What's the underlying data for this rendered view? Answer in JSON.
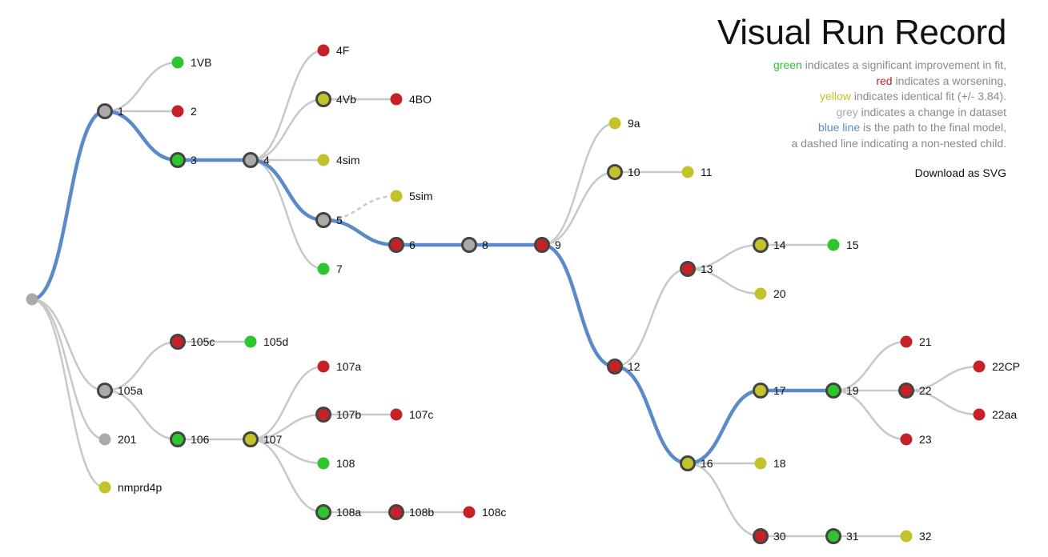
{
  "title": "Visual Run Record",
  "legend": {
    "green": {
      "word": "green",
      "rest": " indicates a significant improvement in fit,",
      "color": "#2ec52e"
    },
    "red": {
      "word": "red",
      "rest": " indicates a worsening,",
      "color": "#c62127"
    },
    "yellow": {
      "word": "yellow",
      "rest": " indicates identical fit (+/- 3.84).",
      "color": "#c2c22a"
    },
    "grey": {
      "word": "grey",
      "rest": " indicates a change in dataset",
      "color": "#aaaaaa"
    },
    "blue": {
      "word": "blue line",
      "rest": " is the path to the final model,",
      "color": "#5b8ac9"
    },
    "dashed": {
      "text": "a dashed line indicating a non-nested child."
    }
  },
  "download_label": "Download as SVG",
  "colors": {
    "green": "#2ec52e",
    "red": "#c62127",
    "yellow": "#c2c22a",
    "grey": "#aaaaaa",
    "path": "#5b8ac9",
    "edge": "#c8c8c8"
  },
  "nodes": [
    {
      "id": "root",
      "label": "",
      "color": "grey",
      "parent": null
    },
    {
      "id": "1",
      "label": "1",
      "color": "grey",
      "parent": "root"
    },
    {
      "id": "1VB",
      "label": "1VB",
      "color": "green",
      "parent": "1"
    },
    {
      "id": "2",
      "label": "2",
      "color": "red",
      "parent": "1"
    },
    {
      "id": "3",
      "label": "3",
      "color": "green",
      "parent": "1"
    },
    {
      "id": "4",
      "label": "4",
      "color": "grey",
      "parent": "3"
    },
    {
      "id": "4F",
      "label": "4F",
      "color": "red",
      "parent": "4"
    },
    {
      "id": "4Vb",
      "label": "4Vb",
      "color": "yellow",
      "parent": "4"
    },
    {
      "id": "4BO",
      "label": "4BO",
      "color": "red",
      "parent": "4Vb"
    },
    {
      "id": "4sim",
      "label": "4sim",
      "color": "yellow",
      "parent": "4"
    },
    {
      "id": "5",
      "label": "5",
      "color": "grey",
      "parent": "4"
    },
    {
      "id": "5sim",
      "label": "5sim",
      "color": "yellow",
      "parent": "5",
      "dashed": true
    },
    {
      "id": "7",
      "label": "7",
      "color": "green",
      "parent": "4"
    },
    {
      "id": "6",
      "label": "6",
      "color": "red",
      "parent": "5"
    },
    {
      "id": "8",
      "label": "8",
      "color": "grey",
      "parent": "6"
    },
    {
      "id": "9",
      "label": "9",
      "color": "red",
      "parent": "8"
    },
    {
      "id": "9a",
      "label": "9a",
      "color": "yellow",
      "parent": "9"
    },
    {
      "id": "10",
      "label": "10",
      "color": "yellow",
      "parent": "9"
    },
    {
      "id": "11",
      "label": "11",
      "color": "yellow",
      "parent": "10"
    },
    {
      "id": "12",
      "label": "12",
      "color": "red",
      "parent": "9"
    },
    {
      "id": "13",
      "label": "13",
      "color": "red",
      "parent": "12"
    },
    {
      "id": "14",
      "label": "14",
      "color": "yellow",
      "parent": "13"
    },
    {
      "id": "15",
      "label": "15",
      "color": "green",
      "parent": "14"
    },
    {
      "id": "20",
      "label": "20",
      "color": "yellow",
      "parent": "13"
    },
    {
      "id": "16",
      "label": "16",
      "color": "yellow",
      "parent": "12"
    },
    {
      "id": "17",
      "label": "17",
      "color": "yellow",
      "parent": "16"
    },
    {
      "id": "19",
      "label": "19",
      "color": "green",
      "parent": "17"
    },
    {
      "id": "21",
      "label": "21",
      "color": "red",
      "parent": "19"
    },
    {
      "id": "22",
      "label": "22",
      "color": "red",
      "parent": "19"
    },
    {
      "id": "22CP",
      "label": "22CP",
      "color": "red",
      "parent": "22"
    },
    {
      "id": "22aa",
      "label": "22aa",
      "color": "red",
      "parent": "22"
    },
    {
      "id": "23",
      "label": "23",
      "color": "red",
      "parent": "19"
    },
    {
      "id": "18",
      "label": "18",
      "color": "yellow",
      "parent": "16"
    },
    {
      "id": "30",
      "label": "30",
      "color": "red",
      "parent": "16"
    },
    {
      "id": "31",
      "label": "31",
      "color": "green",
      "parent": "30"
    },
    {
      "id": "32",
      "label": "32",
      "color": "yellow",
      "parent": "31"
    },
    {
      "id": "105a",
      "label": "105a",
      "color": "grey",
      "parent": "root"
    },
    {
      "id": "105c",
      "label": "105c",
      "color": "red",
      "parent": "105a"
    },
    {
      "id": "105d",
      "label": "105d",
      "color": "green",
      "parent": "105c"
    },
    {
      "id": "106",
      "label": "106",
      "color": "green",
      "parent": "105a"
    },
    {
      "id": "107",
      "label": "107",
      "color": "yellow",
      "parent": "106"
    },
    {
      "id": "107a",
      "label": "107a",
      "color": "red",
      "parent": "107"
    },
    {
      "id": "107b",
      "label": "107b",
      "color": "red",
      "parent": "107"
    },
    {
      "id": "107c",
      "label": "107c",
      "color": "red",
      "parent": "107b"
    },
    {
      "id": "108",
      "label": "108",
      "color": "green",
      "parent": "107"
    },
    {
      "id": "108a",
      "label": "108a",
      "color": "green",
      "parent": "107"
    },
    {
      "id": "108b",
      "label": "108b",
      "color": "red",
      "parent": "108a"
    },
    {
      "id": "108c",
      "label": "108c",
      "color": "red",
      "parent": "108b"
    },
    {
      "id": "201",
      "label": "201",
      "color": "grey",
      "parent": "root"
    },
    {
      "id": "nmprd4p",
      "label": "nmprd4p",
      "color": "yellow",
      "parent": "root"
    }
  ],
  "final_path": [
    "root",
    "1",
    "3",
    "4",
    "5",
    "6",
    "8",
    "9",
    "12",
    "16",
    "17",
    "19"
  ]
}
